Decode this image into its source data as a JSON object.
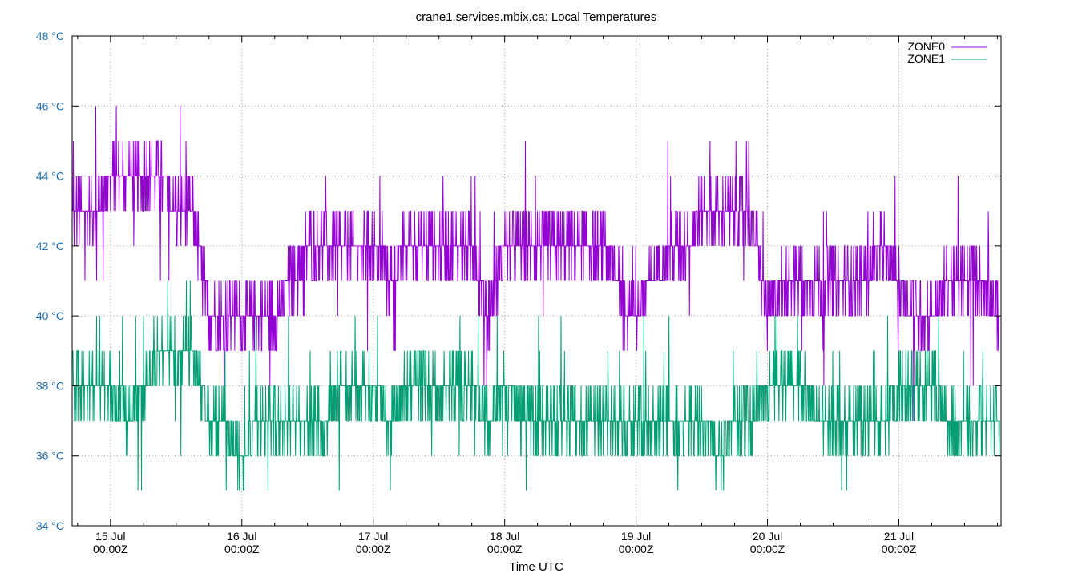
{
  "chart_data": {
    "type": "line",
    "title": "crane1.services.mbix.ca: Local Temperatures",
    "xlabel": "Time UTC",
    "ylabel": "",
    "xlim": [
      "2024-07-14T17:00:00Z",
      "2024-07-21T18:40:00Z"
    ],
    "ylim": [
      34,
      48
    ],
    "yticks": [
      "34 °C",
      "36 °C",
      "38 °C",
      "40 °C",
      "42 °C",
      "44 °C",
      "46 °C",
      "48 °C"
    ],
    "xticks": [
      {
        "day": "15 Jul",
        "time": "00:00Z"
      },
      {
        "day": "16 Jul",
        "time": "00:00Z"
      },
      {
        "day": "17 Jul",
        "time": "00:00Z"
      },
      {
        "day": "18 Jul",
        "time": "00:00Z"
      },
      {
        "day": "19 Jul",
        "time": "00:00Z"
      },
      {
        "day": "20 Jul",
        "time": "00:00Z"
      },
      {
        "day": "21 Jul",
        "time": "00:00Z"
      }
    ],
    "grid": true,
    "legend_position": "top-right",
    "colors": {
      "ZONE0": "#9400d3",
      "ZONE1": "#009e73",
      "ytick": "#1f6fb2",
      "grid": "#a0a0a0"
    },
    "series": [
      {
        "name": "ZONE0",
        "x": [
          "07-14 18:00",
          "07-14 21:00",
          "07-15 00:00",
          "07-15 03:00",
          "07-15 06:00",
          "07-15 09:00",
          "07-15 12:00",
          "07-15 15:00",
          "07-15 18:00",
          "07-15 21:00",
          "07-16 00:00",
          "07-16 03:00",
          "07-16 06:00",
          "07-16 09:00",
          "07-16 12:00",
          "07-16 15:00",
          "07-16 18:00",
          "07-16 21:00",
          "07-17 00:00",
          "07-17 03:00",
          "07-17 06:00",
          "07-17 09:00",
          "07-17 12:00",
          "07-17 15:00",
          "07-17 18:00",
          "07-17 21:00",
          "07-18 00:00",
          "07-18 03:00",
          "07-18 06:00",
          "07-18 09:00",
          "07-18 12:00",
          "07-18 15:00",
          "07-18 18:00",
          "07-18 21:00",
          "07-19 00:00",
          "07-19 03:00",
          "07-19 06:00",
          "07-19 09:00",
          "07-19 12:00",
          "07-19 15:00",
          "07-19 18:00",
          "07-19 21:00",
          "07-20 00:00",
          "07-20 03:00",
          "07-20 06:00",
          "07-20 09:00",
          "07-20 12:00",
          "07-20 15:00",
          "07-20 18:00",
          "07-20 21:00",
          "07-21 00:00",
          "07-21 03:00",
          "07-21 06:00",
          "07-21 09:00",
          "07-21 12:00",
          "07-21 15:00",
          "07-21 18:00"
        ],
        "values": [
          43,
          43,
          44,
          44,
          44,
          44,
          43,
          43,
          40,
          40,
          40,
          40,
          40,
          41,
          42,
          42,
          42,
          42,
          42,
          41,
          42,
          42,
          42,
          42,
          42,
          40,
          42,
          42,
          42,
          42,
          42,
          42,
          42,
          41,
          40,
          41,
          42,
          42,
          43,
          43,
          43,
          43,
          40,
          41,
          41,
          41,
          41,
          41,
          41,
          42,
          41,
          40,
          40,
          41,
          41,
          41,
          40
        ]
      },
      {
        "name": "ZONE1",
        "x": [
          "07-14 18:00",
          "07-14 21:00",
          "07-15 00:00",
          "07-15 03:00",
          "07-15 06:00",
          "07-15 09:00",
          "07-15 12:00",
          "07-15 15:00",
          "07-15 18:00",
          "07-15 21:00",
          "07-16 00:00",
          "07-16 03:00",
          "07-16 06:00",
          "07-16 09:00",
          "07-16 12:00",
          "07-16 15:00",
          "07-16 18:00",
          "07-16 21:00",
          "07-17 00:00",
          "07-17 03:00",
          "07-17 06:00",
          "07-17 09:00",
          "07-17 12:00",
          "07-17 15:00",
          "07-17 18:00",
          "07-17 21:00",
          "07-18 00:00",
          "07-18 03:00",
          "07-18 06:00",
          "07-18 09:00",
          "07-18 12:00",
          "07-18 15:00",
          "07-18 18:00",
          "07-18 21:00",
          "07-19 00:00",
          "07-19 03:00",
          "07-19 06:00",
          "07-19 09:00",
          "07-19 12:00",
          "07-19 15:00",
          "07-19 18:00",
          "07-19 21:00",
          "07-20 00:00",
          "07-20 03:00",
          "07-20 06:00",
          "07-20 09:00",
          "07-20 12:00",
          "07-20 15:00",
          "07-20 18:00",
          "07-20 21:00",
          "07-21 00:00",
          "07-21 03:00",
          "07-21 06:00",
          "07-21 09:00",
          "07-21 12:00",
          "07-21 15:00",
          "07-21 18:00"
        ],
        "values": [
          38,
          38,
          38,
          37,
          38,
          39,
          39,
          39,
          37,
          37,
          36,
          37,
          37,
          37,
          37,
          37,
          38,
          38,
          38,
          37,
          38,
          38,
          38,
          38,
          38,
          37,
          38,
          37,
          37,
          37,
          37,
          37,
          37,
          37,
          37,
          37,
          37,
          37,
          37,
          36,
          37,
          37,
          38,
          38,
          38,
          37,
          37,
          37,
          37,
          37,
          38,
          38,
          38,
          37,
          37,
          37,
          37
        ]
      }
    ]
  }
}
